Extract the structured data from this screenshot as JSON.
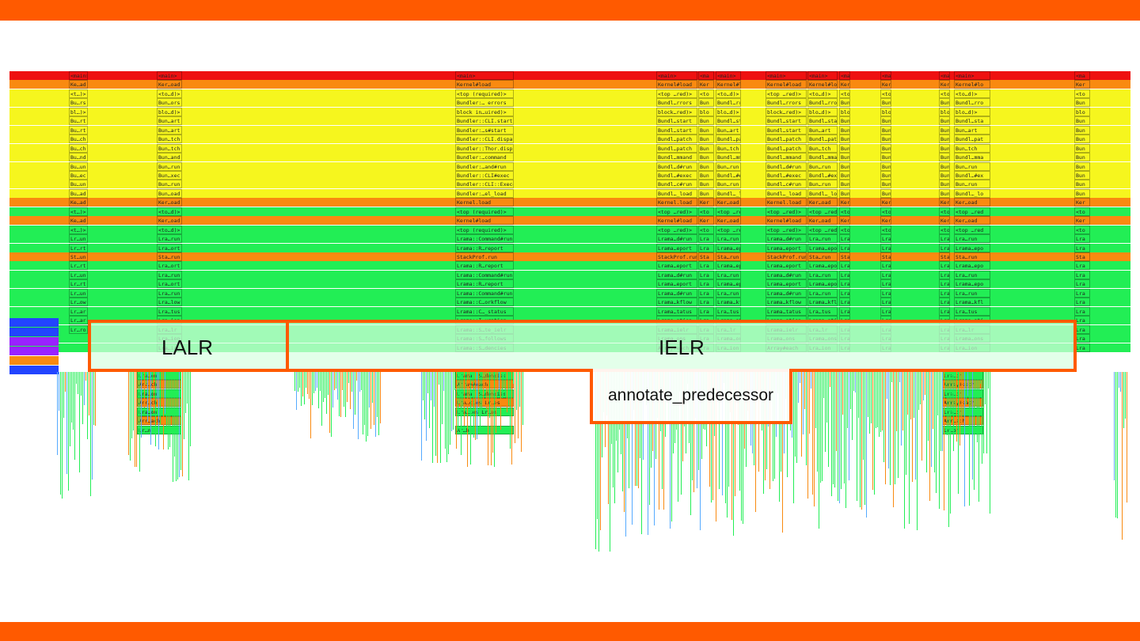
{
  "colors": {
    "accent": "#ff5a00",
    "frame_red": "#ee1111",
    "frame_orange": "#f98a10",
    "frame_yellow": "#f6f61e",
    "frame_green": "#22ee55",
    "frame_blue": "#2244ff",
    "frame_purple": "#9922ff"
  },
  "regions": {
    "lalr": {
      "label": "LALR"
    },
    "ielr": {
      "label": "IELR"
    },
    "annotate": {
      "label": "annotate_predecessor"
    }
  },
  "stack_rows": [
    {
      "color": "red",
      "labels": [
        "<main>",
        "<main>",
        "<main>",
        "<main>",
        "<main>"
      ]
    },
    {
      "color": "orange",
      "labels": [
        "Ke…ad",
        "Ker…oad",
        "Kernel#load",
        "Kernel#load",
        "Kernel#load"
      ]
    },
    {
      "color": "yellow",
      "labels": [
        "<t…)>",
        "<to…d)>",
        "<top (required)>",
        "<top …red)>",
        "<top …red)>"
      ]
    },
    {
      "color": "yellow",
      "labels": [
        "Bu…rs",
        "Bun…ors",
        "Bundler:… errors",
        "Bundl…rrors",
        "Bundl…rrors"
      ]
    },
    {
      "color": "yellow",
      "labels": [
        "bl…)>",
        "blo…d)>",
        "block in…uired)>",
        "block…red)>",
        "block…red)>"
      ]
    },
    {
      "color": "yellow",
      "labels": [
        "Bu…rt",
        "Bun…art",
        "Bundler::CLI.start",
        "Bundl…start",
        "Bundl…start"
      ]
    },
    {
      "color": "yellow",
      "labels": [
        "Bu…rt",
        "Bun…art",
        "Bundler:…s#start",
        "Bundl…start",
        "Bundl…start"
      ]
    },
    {
      "color": "yellow",
      "labels": [
        "Bu…ch",
        "Bun…tch",
        "Bundler::CLI.dispatch",
        "Bundl…patch",
        "Bundl…patch"
      ]
    },
    {
      "color": "yellow",
      "labels": [
        "Bu…ch",
        "Bun…tch",
        "Bundler::Thor.dispatch",
        "Bundl…patch",
        "Bundl…patch"
      ]
    },
    {
      "color": "yellow",
      "labels": [
        "Bu…nd",
        "Bun…and",
        "Bundler:…command",
        "Bundl…mmand",
        "Bundl…mmand"
      ]
    },
    {
      "color": "yellow",
      "labels": [
        "Bu…un",
        "Bun…run",
        "Bundler:…and#run",
        "Bundl…d#run",
        "Bundl…d#run"
      ]
    },
    {
      "color": "yellow",
      "labels": [
        "Bu…ec",
        "Bun…xec",
        "Bundler::CLI#exec",
        "Bundl…#exec",
        "Bundl…#exec"
      ]
    },
    {
      "color": "yellow",
      "labels": [
        "Bu…un",
        "Bun…run",
        "Bundler::CLI::Exec#run",
        "Bundl…c#run",
        "Bundl…c#run"
      ]
    },
    {
      "color": "yellow",
      "labels": [
        "Bu…ad",
        "Bun…oad",
        "Bundler:…el_load",
        "Bundl…_load",
        "Bundl…_load"
      ]
    },
    {
      "color": "orange",
      "labels": [
        "Ke…ad",
        "Ker…oad",
        "Kernel.load",
        "Kernel.load",
        "Kernel.load"
      ]
    },
    {
      "color": "green",
      "labels": [
        "<t…)>",
        "<to…d)>",
        "<top (required)>",
        "<top …red)>",
        "<top …red)>"
      ]
    },
    {
      "color": "orange",
      "labels": [
        "Ke…ad",
        "Ker…oad",
        "Kernel#load",
        "Kernel#load",
        "Kernel#load"
      ]
    },
    {
      "color": "green",
      "labels": [
        "<t…)>",
        "<to…d)>",
        "<top (required)>",
        "<top …red)>",
        "<top …red)>"
      ]
    },
    {
      "color": "green",
      "labels": [
        "Lr…un",
        "Lra…run",
        "Lrama::Command#run",
        "Lrama…d#run",
        "Lrama…d#run"
      ]
    },
    {
      "color": "green",
      "labels": [
        "Lr…rt",
        "Lra…ort",
        "Lrama::R…report",
        "Lrama…eport",
        "Lrama…eport"
      ]
    },
    {
      "color": "orange",
      "labels": [
        "St…un",
        "Sta…run",
        "StackProf.run",
        "StackProf.run",
        "StackProf.run"
      ]
    },
    {
      "color": "green",
      "labels": [
        "Lr…rt",
        "Lra…ort",
        "Lrama::R…report",
        "Lrama…eport",
        "Lrama…eport"
      ]
    },
    {
      "color": "green",
      "labels": [
        "Lr…un",
        "Lra…run",
        "Lrama::Command#run",
        "Lrama…d#run",
        "Lrama…d#run"
      ]
    },
    {
      "color": "green",
      "labels": [
        "Lr…rt",
        "Lra…ort",
        "Lrama::R…report",
        "Lrama…eport",
        "Lrama…eport"
      ]
    },
    {
      "color": "green",
      "labels": [
        "Lr…un",
        "Lra…run",
        "Lrama::Command#run",
        "Lrama…d#run",
        "Lrama…d#run"
      ]
    },
    {
      "color": "green",
      "labels": [
        "Lr…ow",
        "Lra…low",
        "Lrama::C…orkflow",
        "Lrama…kflow",
        "Lrama…kflow"
      ]
    },
    {
      "color": "green",
      "labels": [
        "Lr…ar",
        "Lra…tus",
        "Lrama::C…_status",
        "Lrama…tatus",
        "Lrama…tatus"
      ]
    },
    {
      "color": "green",
      "labels": [
        "Lr…ar",
        "Lra…ion",
        "Lrama::I…uration",
        "Lrama…ation",
        "Lrama…ation"
      ]
    },
    {
      "color": "green",
      "labels": [
        "Lr…ro",
        "Lra…lr",
        "Lrama::S…te_ielr",
        "Lrama…ielr",
        "Lrama…ielr"
      ]
    },
    {
      "color": "green",
      "labels": [
        "",
        "Lra…ion",
        "Lrama::S…follows",
        "Lrama…ons",
        "Lrama…ons"
      ]
    },
    {
      "color": "green",
      "labels": [
        "",
        "Lra…ion",
        "Lrama::S…dencies",
        "Array#each",
        "Array#each"
      ]
    }
  ],
  "lower_rows": [
    {
      "labels": [
        "Lra…on",
        "Lrama::S…dencies",
        "Lra…on"
      ]
    },
    {
      "labels": [
        "Arr…ch",
        "Array#each",
        "Array#each"
      ]
    },
    {
      "labels": [
        "Lra…on",
        "Lrama::S…dencies",
        "Lra…on"
      ]
    },
    {
      "labels": [
        "Arr…ch",
        "Lra…cies  Lr…es",
        "Array#each"
      ]
    },
    {
      "labels": [
        "Lra…on",
        "Lra…ies  Lr…es",
        "Lra…on"
      ]
    },
    {
      "labels": [
        "Arr…ach",
        "",
        "Arr…ach"
      ]
    },
    {
      "labels": [
        "Lr…n",
        "Ar…h",
        "Lr…on"
      ]
    }
  ]
}
